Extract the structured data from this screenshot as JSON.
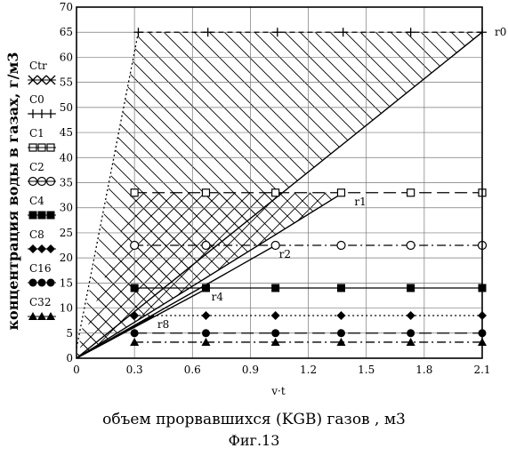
{
  "chart_data": {
    "type": "line",
    "ylabel": "концентрация  воды в газах, г/м3",
    "xlabel": "v·t",
    "x_caption": "объем прорвавшихся (KGB) газов , м3",
    "figure_label": "Фиг.13",
    "xlim": [
      0,
      2.1
    ],
    "ylim": [
      0,
      70
    ],
    "x_ticks": [
      "0",
      "0.3",
      "0.6",
      "0.9",
      "1.2",
      "1.5",
      "1.8",
      "2.1"
    ],
    "y_ticks": [
      "0",
      "5",
      "10",
      "15",
      "20",
      "25",
      "30",
      "35",
      "40",
      "45",
      "50",
      "55",
      "60",
      "65",
      "70"
    ],
    "grid": true,
    "series": [
      {
        "name": "C0",
        "marker": "plus",
        "line": "dash",
        "x": [
          0.32,
          0.68,
          1.04,
          1.38,
          1.73,
          2.1
        ],
        "y": [
          65,
          65,
          65,
          65,
          65,
          65
        ]
      },
      {
        "name": "C1",
        "marker": "square-open",
        "line": "long-dash",
        "x": [
          0.3,
          0.67,
          1.03,
          1.37,
          1.73,
          2.1
        ],
        "y": [
          33,
          33,
          33,
          33,
          33,
          33
        ]
      },
      {
        "name": "C2",
        "marker": "circle-open",
        "line": "dash-dot",
        "x": [
          0.3,
          0.67,
          1.03,
          1.37,
          1.73,
          2.1
        ],
        "y": [
          22.5,
          22.5,
          22.5,
          22.5,
          22.5,
          22.5
        ]
      },
      {
        "name": "C4",
        "marker": "square-filled",
        "line": "solid",
        "x": [
          0.3,
          0.67,
          1.03,
          1.37,
          1.73,
          2.1
        ],
        "y": [
          14,
          14,
          14,
          14,
          14,
          14
        ]
      },
      {
        "name": "C8",
        "marker": "diamond-filled",
        "line": "dot",
        "x": [
          0.3,
          0.67,
          1.03,
          1.37,
          1.73,
          2.1
        ],
        "y": [
          8.5,
          8.5,
          8.5,
          8.5,
          8.5,
          8.5
        ]
      },
      {
        "name": "C16",
        "marker": "circle-filled",
        "line": "long-dash",
        "x": [
          0.3,
          0.67,
          1.03,
          1.37,
          1.73,
          2.1
        ],
        "y": [
          5,
          5,
          5,
          5,
          5,
          5
        ]
      },
      {
        "name": "C32",
        "marker": "triangle-filled",
        "line": "dash-dot",
        "x": [
          0.3,
          0.67,
          1.03,
          1.37,
          1.73,
          2.1
        ],
        "y": [
          3.2,
          3.2,
          3.2,
          3.2,
          3.2,
          3.2
        ]
      },
      {
        "name": "Ctr",
        "marker": "x",
        "line": "dot",
        "x": [
          0,
          0.32
        ],
        "y": [
          2,
          65
        ]
      }
    ],
    "rays": [
      {
        "name": "r0",
        "x": [
          0,
          2.1
        ],
        "y": [
          0,
          65
        ]
      },
      {
        "name": "r1",
        "x": [
          0,
          1.38
        ],
        "y": [
          0,
          33
        ]
      },
      {
        "name": "r2",
        "x": [
          0,
          1.03
        ],
        "y": [
          0,
          22.5
        ]
      },
      {
        "name": "r4",
        "x": [
          0,
          0.68
        ],
        "y": [
          0,
          14
        ]
      },
      {
        "name": "r8",
        "x": [
          0,
          0.4
        ],
        "y": [
          0,
          8.5
        ]
      }
    ],
    "regions": [
      {
        "name": "single-hatched",
        "pattern": "hatch-backslash",
        "points": [
          [
            0.32,
            65
          ],
          [
            2.1,
            65
          ],
          [
            0,
            0
          ]
        ]
      },
      {
        "name": "cross-hatched",
        "pattern": "hatch-cross",
        "points": [
          [
            0.3,
            33
          ],
          [
            1.38,
            33
          ],
          [
            0,
            0
          ]
        ]
      }
    ],
    "labels": [
      {
        "text": "r0",
        "x": 2.1,
        "y": 65,
        "align": "right"
      },
      {
        "text": "r1",
        "x": 1.42,
        "y": 33,
        "align": "inline"
      },
      {
        "text": "r2",
        "x": 1.03,
        "y": 22.5,
        "align": "inline"
      },
      {
        "text": "r4",
        "x": 0.68,
        "y": 14,
        "align": "inline"
      },
      {
        "text": "r8",
        "x": 0.4,
        "y": 8.5,
        "align": "inline"
      }
    ],
    "legend_order": [
      "Ctr",
      "C0",
      "C1",
      "C2",
      "C4",
      "C8",
      "C16",
      "C32"
    ],
    "legend_placement": "left"
  }
}
